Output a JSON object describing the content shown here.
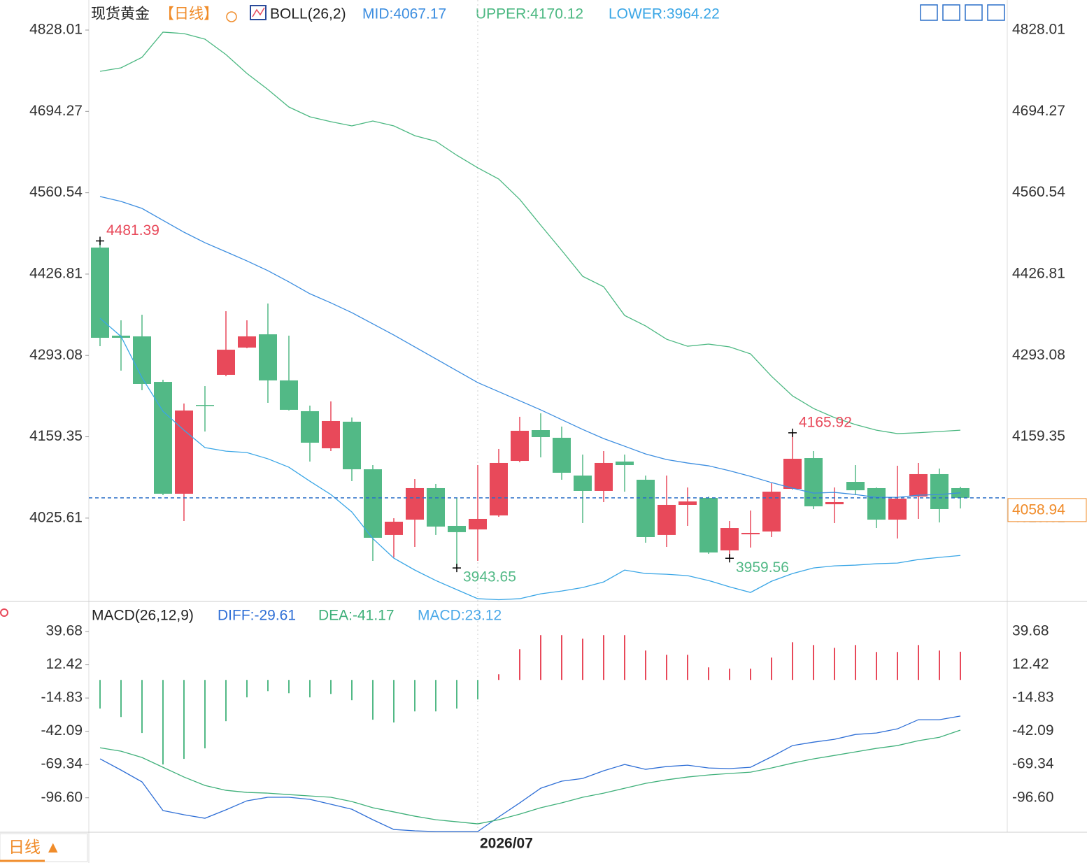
{
  "chart_data": [
    {
      "type": "candlestick",
      "title": "现货黄金",
      "period": "【日线】",
      "indicator": "BOLL(26,2)",
      "categories": [
        null,
        null,
        null,
        null,
        null,
        null,
        null,
        null,
        null,
        null,
        null,
        null,
        null,
        null,
        null,
        null,
        null,
        null,
        "2026/07",
        null,
        null,
        null,
        null,
        null,
        null,
        null,
        null,
        null,
        null,
        null,
        null,
        null,
        null,
        null,
        null,
        null,
        null,
        null,
        null,
        null,
        null,
        null
      ],
      "open": [
        4470.4,
        4325.6,
        4324.4,
        4249.6,
        4065.7,
        4211.7,
        4261.2,
        4306.0,
        4327.8,
        4252.0,
        4201.4,
        4140.4,
        4184.1,
        4105.9,
        3997.9,
        4023.1,
        4074.9,
        4012.8,
        4007.0,
        4030.0,
        4119.7,
        4170.3,
        4157.7,
        4095.6,
        4070.3,
        4118.6,
        4088.7,
        3997.9,
        4047.3,
        4058.8,
        3972.5,
        3999.0,
        4003.6,
        4073.7,
        4124.3,
        4048.4,
        4085.2,
        4074.9,
        4023.1,
        4061.1,
        4097.9,
        4074.9
      ],
      "high": [
        4481.39,
        4350.8,
        4360.0,
        4253.1,
        4214.0,
        4242.7,
        4365.8,
        4350.8,
        4378.4,
        4325.6,
        4210.6,
        4217.5,
        4191.0,
        4112.8,
        4025.4,
        4089.8,
        4081.8,
        4058.8,
        4112.8,
        4139.3,
        4192.2,
        4197.9,
        4176.1,
        4130.1,
        4135.8,
        4130.1,
        4095.6,
        4095.6,
        4076.0,
        4061.1,
        4020.8,
        4038.1,
        4082.9,
        4165.92,
        4135.8,
        4076.0,
        4112.8,
        4076.0,
        4111.7,
        4116.3,
        4107.1,
        4077.2
      ],
      "low": [
        4308.3,
        4268.1,
        4235.9,
        4063.4,
        4020.8,
        4168.0,
        4258.9,
        4304.9,
        4215.2,
        4202.5,
        4118.6,
        4135.8,
        4086.4,
        3955.3,
        3961.0,
        3978.3,
        3997.9,
        3943.65,
        3955.3,
        4027.7,
        4117.4,
        4125.5,
        4088.7,
        4017.4,
        4051.9,
        4069.1,
        3985.2,
        3978.3,
        4012.8,
        3966.8,
        3959.56,
        3977.2,
        3994.4,
        4072.6,
        4040.4,
        4017.4,
        4063.4,
        4009.3,
        3992.1,
        4024.3,
        4018.5,
        4041.5
      ],
      "close": [
        4322.1,
        4322.1,
        4246.2,
        4065.7,
        4202.5,
        4210.6,
        4302.5,
        4324.4,
        4252.0,
        4203.7,
        4149.6,
        4185.3,
        4105.9,
        3993.3,
        4019.7,
        4074.9,
        4011.7,
        4002.5,
        4024.3,
        4116.3,
        4169.2,
        4158.8,
        4100.2,
        4070.3,
        4116.3,
        4112.8,
        3994.4,
        4047.3,
        4053.0,
        3969.1,
        4009.3,
        4001.3,
        4069.1,
        4123.2,
        4045.0,
        4051.9,
        4071.4,
        4023.1,
        4057.6,
        4097.9,
        4040.4,
        4058.94
      ],
      "up_color": "#e8495a",
      "down_color": "#52b986",
      "series": [
        {
          "name": "MID:4067.17",
          "color": "#3d8ee0",
          "values": [
            4554.3,
            4546.3,
            4534.8,
            4515.2,
            4495.7,
            4478.4,
            4463.5,
            4448.5,
            4432.4,
            4414.0,
            4394.5,
            4379.5,
            4363.4,
            4345.0,
            4326.6,
            4307.1,
            4287.5,
            4268.0,
            4248.4,
            4233.5,
            4218.5,
            4203.6,
            4187.5,
            4171.4,
            4156.4,
            4143.8,
            4131.1,
            4121.9,
            4116.2,
            4111.6,
            4103.5,
            4094.3,
            4084.0,
            4074.8,
            4066.7,
            4067.9,
            4064.4,
            4059.8,
            4059.8,
            4063.3,
            4064.4,
            4067.17
          ]
        },
        {
          "name": "UPPER:4170.12",
          "color": "#4cb882",
          "values": [
            4760.2,
            4765.9,
            4783.2,
            4824.6,
            4822.3,
            4813.1,
            4787.8,
            4756.7,
            4730.3,
            4701.5,
            4685.4,
            4677.4,
            4670.5,
            4678.5,
            4670.5,
            4654.4,
            4645.2,
            4622.2,
            4601.5,
            4583.1,
            4549.7,
            4507.2,
            4465.8,
            4423.2,
            4406.0,
            4358.8,
            4341.6,
            4319.7,
            4308.2,
            4311.7,
            4307.1,
            4295.6,
            4258.8,
            4226.6,
            4205.9,
            4190.9,
            4179.4,
            4170.2,
            4164.5,
            4166.0,
            4168.0,
            4170.12
          ]
        },
        {
          "name": "LOWER:3964.22",
          "color": "#3aa6e6",
          "values": [
            4354.2,
            4324.3,
            4256.5,
            4201.3,
            4170.2,
            4141.5,
            4135.7,
            4133.4,
            4123.1,
            4109.3,
            4086.3,
            4064.4,
            4035.7,
            3992.0,
            3959.8,
            3940.2,
            3923.0,
            3908.0,
            3893.1,
            3891.5,
            3893.1,
            3901.1,
            3905.7,
            3911.5,
            3920.7,
            3940.2,
            3934.5,
            3933.3,
            3931.0,
            3923.0,
            3912.6,
            3903.4,
            3921.8,
            3934.5,
            3943.7,
            3947.1,
            3948.3,
            3950.6,
            3951.7,
            3957.5,
            3961.0,
            3964.22
          ]
        }
      ],
      "annotations": [
        {
          "index": 0,
          "value": 4481.39,
          "color": "#e8495a"
        },
        {
          "index": 17,
          "value": 3943.65,
          "color": "#52b986"
        },
        {
          "index": 33,
          "value": 4165.92,
          "color": "#e8495a"
        },
        {
          "index": 30,
          "value": 3959.56,
          "color": "#52b986"
        }
      ],
      "last_price": 4058.94,
      "last_price_color": "#f08c2a",
      "ylim": [
        3890.9,
        4877.45
      ],
      "yticks": [
        4828.01,
        4694.27,
        4560.54,
        4426.81,
        4293.08,
        4159.35,
        4025.61
      ]
    },
    {
      "type": "macd",
      "title": "MACD(26,12,9)",
      "series": [
        {
          "name": "DIFF:-29.61",
          "color": "#2f6fd6",
          "values": [
            -64.7,
            -73.9,
            -83.6,
            -107.1,
            -110.5,
            -113.4,
            -106.5,
            -99.1,
            -96.2,
            -96.2,
            -97.9,
            -101.9,
            -106.0,
            -114.6,
            -122.6,
            -123.7,
            -124.3,
            -124.3,
            -124.3,
            -112.3,
            -100.8,
            -88.8,
            -83.0,
            -80.8,
            -74.5,
            -69.3,
            -73.3,
            -71.0,
            -69.9,
            -72.2,
            -72.7,
            -71.6,
            -63.0,
            -53.8,
            -51.0,
            -48.7,
            -44.7,
            -43.5,
            -40.1,
            -32.6,
            -32.6,
            -29.61
          ]
        },
        {
          "name": "DEA:-41.17",
          "color": "#3fb07a",
          "values": [
            -55.6,
            -58.4,
            -63.6,
            -71.6,
            -79.6,
            -86.5,
            -90.5,
            -92.2,
            -92.8,
            -94.0,
            -95.1,
            -96.2,
            -99.7,
            -104.8,
            -108.2,
            -111.7,
            -114.6,
            -116.3,
            -118.0,
            -114.6,
            -110.0,
            -104.8,
            -100.8,
            -96.2,
            -92.8,
            -88.8,
            -84.8,
            -81.9,
            -79.6,
            -77.9,
            -76.7,
            -75.6,
            -72.2,
            -68.2,
            -64.7,
            -61.9,
            -59.0,
            -56.1,
            -53.8,
            -49.8,
            -47.0,
            -41.17
          ]
        },
        {
          "name": "MACD:23.12",
          "color": "#4aa8e8",
          "up_color": "#e8495a",
          "down_color": "#52b986",
          "values": [
            -23.5,
            -30.4,
            -43.5,
            -69.3,
            -64.7,
            -56.1,
            -33.8,
            -14.3,
            -9.2,
            -10.9,
            -14.3,
            -11.5,
            -16.6,
            -32.6,
            -34.9,
            -25.8,
            -25.8,
            -23.5,
            -16.0,
            4.6,
            25.2,
            36.7,
            36.7,
            33.8,
            36.7,
            36.7,
            24.1,
            20.6,
            20.6,
            10.3,
            9.2,
            9.2,
            18.3,
            30.9,
            28.6,
            26.3,
            28.6,
            22.9,
            22.9,
            28.6,
            24.1,
            23.12
          ]
        }
      ],
      "ylim": [
        -125,
        63.2
      ],
      "yticks": [
        39.68,
        12.42,
        -14.83,
        -42.09,
        -69.34,
        {
          "value": -96.6,
          "label": "-96.60"
        }
      ]
    }
  ],
  "timeframe_tab": "日线 ▲"
}
